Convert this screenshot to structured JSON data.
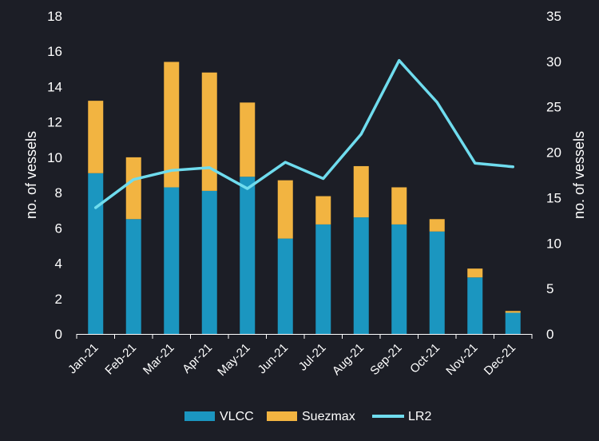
{
  "chart_data": {
    "type": "bar",
    "stacked": true,
    "categories": [
      "Jan-21",
      "Feb-21",
      "Mar-21",
      "Apr-21",
      "May-21",
      "Jun-21",
      "Jul-21",
      "Aug-21",
      "Sep-21",
      "Oct-21",
      "Nov-21",
      "Dec-21"
    ],
    "series": [
      {
        "name": "VLCC",
        "type": "bar",
        "axis": "left",
        "color": "#1b96c0",
        "values": [
          9.1,
          6.5,
          8.3,
          8.1,
          8.9,
          5.4,
          6.2,
          6.6,
          6.2,
          5.8,
          3.2,
          1.2
        ]
      },
      {
        "name": "Suezmax",
        "type": "bar",
        "axis": "left",
        "color": "#f2b441",
        "values": [
          4.1,
          3.5,
          7.1,
          6.7,
          4.2,
          3.3,
          1.6,
          2.9,
          2.1,
          0.7,
          0.5,
          0.1
        ]
      },
      {
        "name": "LR2",
        "type": "line",
        "axis": "right",
        "color": "#6fdcee",
        "values": [
          13.9,
          17.0,
          18.0,
          18.3,
          16.0,
          18.9,
          17.1,
          22.0,
          30.1,
          25.5,
          18.8,
          18.4
        ]
      }
    ],
    "ylabel": "no. of vessels",
    "y2label": "no. of vessels",
    "ylim": [
      0,
      18
    ],
    "yticks": [
      0,
      2,
      4,
      6,
      8,
      10,
      12,
      14,
      16,
      18
    ],
    "y2lim": [
      0,
      35
    ],
    "y2ticks": [
      0,
      5,
      10,
      15,
      20,
      25,
      30,
      35
    ],
    "grid": false,
    "legend": "bottom"
  },
  "colors": {
    "background": "#1c1e26",
    "text": "#ffffff",
    "axis": "#ffffff"
  }
}
